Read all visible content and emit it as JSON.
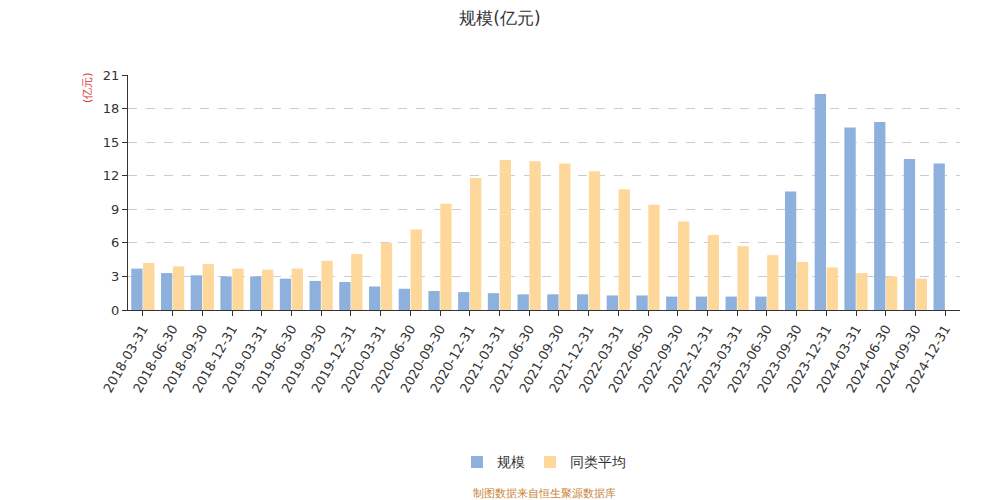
{
  "chart_data": {
    "type": "bar",
    "title": "规模(亿元)",
    "ylabel": "(亿元)",
    "categories": [
      "2018-03-31",
      "2018-06-30",
      "2018-09-30",
      "2018-12-31",
      "2019-03-31",
      "2019-06-30",
      "2019-09-30",
      "2019-12-31",
      "2020-03-31",
      "2020-06-30",
      "2020-09-30",
      "2020-12-31",
      "2021-03-31",
      "2021-06-30",
      "2021-09-30",
      "2021-12-31",
      "2022-03-31",
      "2022-06-30",
      "2022-09-30",
      "2022-12-31",
      "2023-03-31",
      "2023-06-30",
      "2023-09-30",
      "2023-12-31",
      "2024-03-31",
      "2024-06-30",
      "2024-09-30",
      "2024-12-31"
    ],
    "series": [
      {
        "name": "规模",
        "color": "#8eb0dc",
        "values": [
          3.7,
          3.3,
          3.1,
          3.0,
          3.0,
          2.8,
          2.6,
          2.5,
          2.1,
          1.9,
          1.7,
          1.6,
          1.5,
          1.4,
          1.4,
          1.4,
          1.3,
          1.3,
          1.2,
          1.2,
          1.2,
          1.2,
          10.6,
          19.3,
          16.3,
          16.8,
          13.5,
          13.1
        ]
      },
      {
        "name": "同类平均",
        "color": "#fdd89a",
        "values": [
          4.2,
          3.9,
          4.1,
          3.7,
          3.6,
          3.7,
          4.4,
          5.0,
          6.0,
          7.2,
          9.5,
          11.8,
          13.4,
          13.3,
          13.1,
          12.4,
          10.8,
          9.4,
          7.9,
          6.7,
          5.7,
          4.9,
          4.3,
          3.8,
          3.3,
          3.0,
          2.8,
          null
        ]
      }
    ],
    "ylim": [
      0,
      21
    ],
    "yticks": [
      0,
      3,
      6,
      9,
      12,
      15,
      18,
      21
    ],
    "grid": true,
    "legend": "bottom",
    "annotations": [
      "制图数据来自恒生聚源数据库"
    ]
  }
}
